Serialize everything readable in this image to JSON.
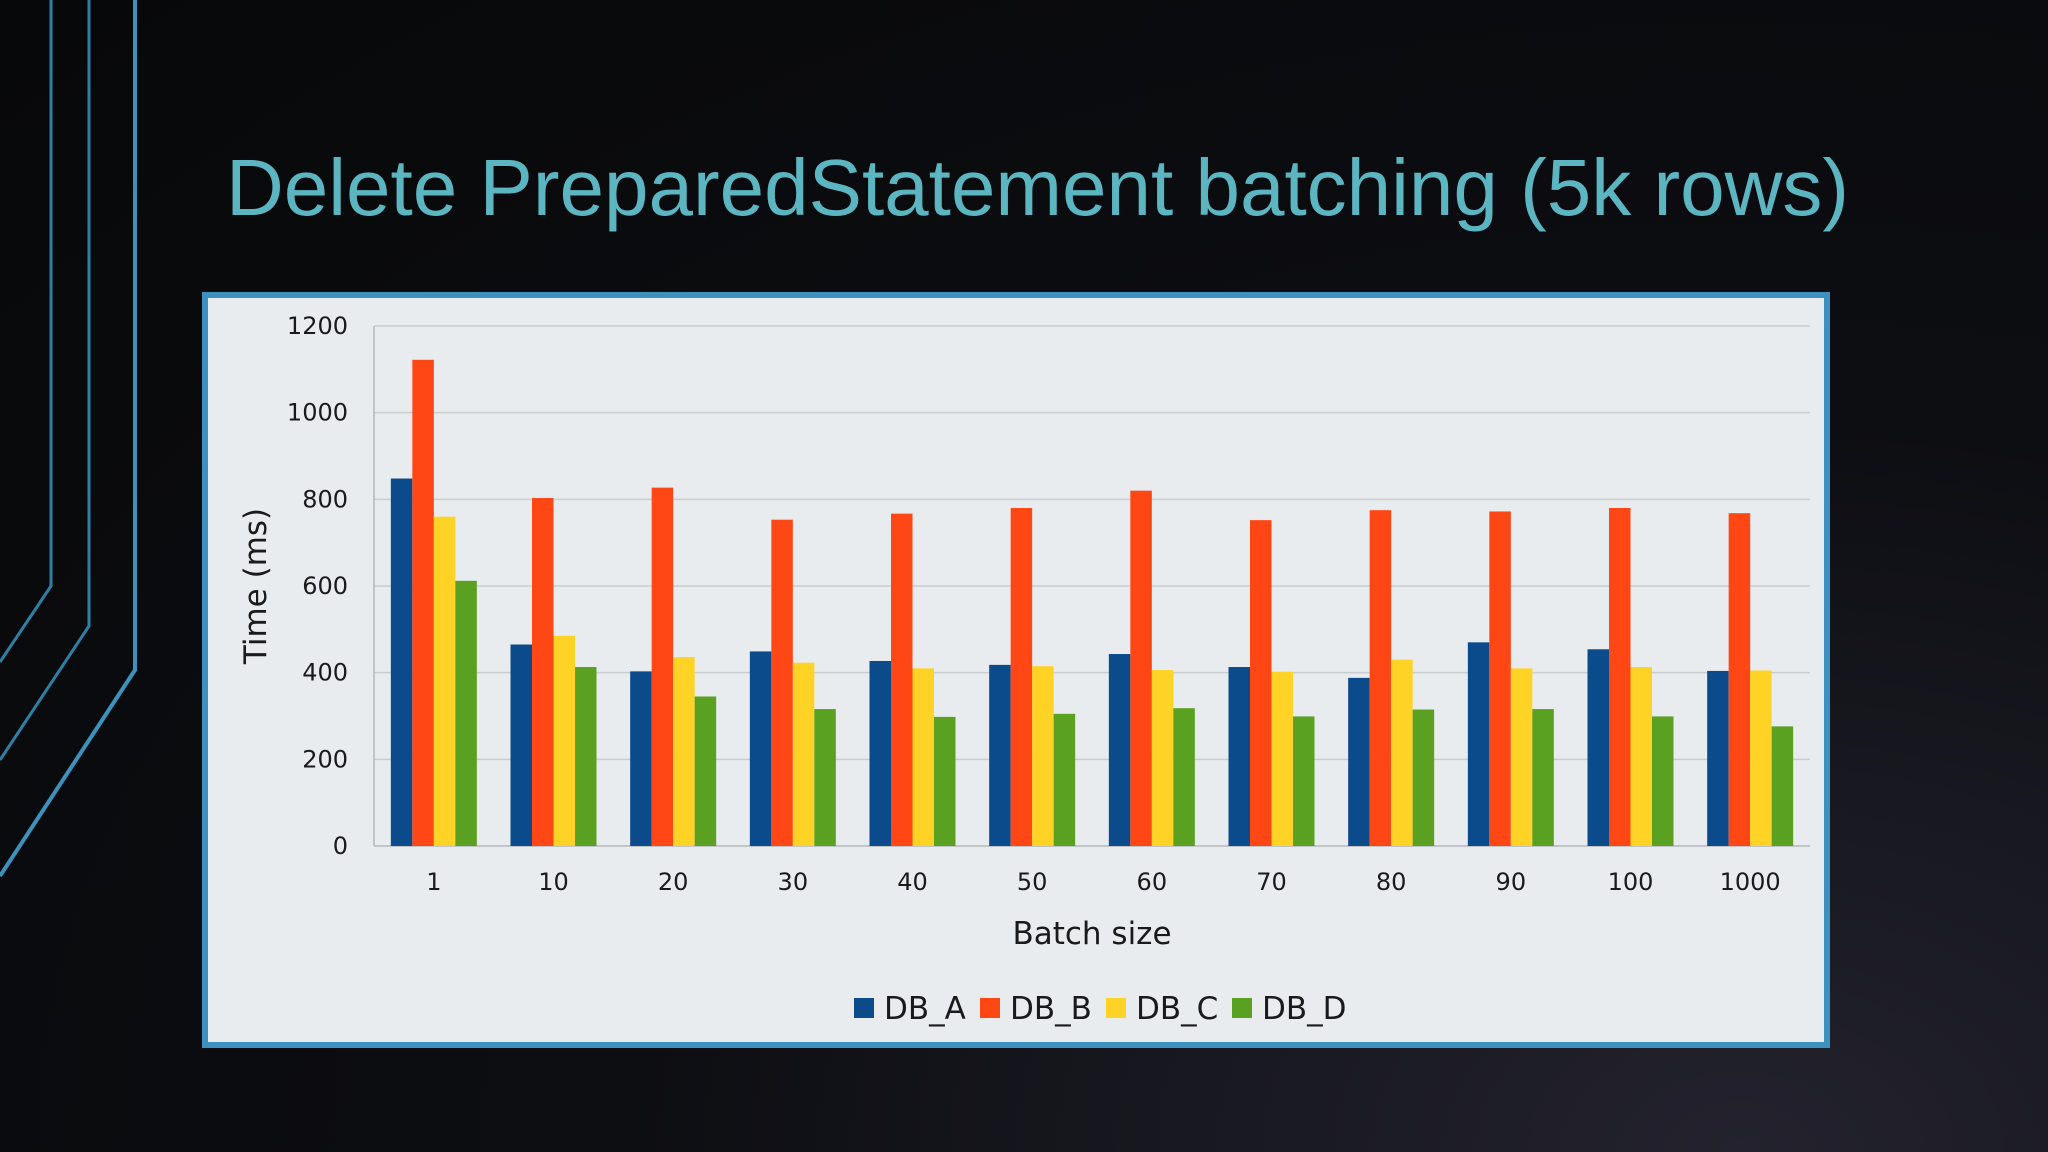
{
  "slide": {
    "title": "Delete PreparedStatement batching (5k rows)",
    "title_color": "#5bb6c2",
    "accent_color": "#3d91c0",
    "decoration": "diagonal-accent-lines"
  },
  "chart_data": {
    "type": "bar",
    "title": "",
    "xlabel": "Batch size",
    "ylabel": "Time (ms)",
    "ylim": [
      0,
      1200
    ],
    "yticks": [
      0,
      200,
      400,
      600,
      800,
      1000,
      1200
    ],
    "grid": true,
    "legend_position": "bottom",
    "categories": [
      "1",
      "10",
      "20",
      "30",
      "40",
      "50",
      "60",
      "70",
      "80",
      "90",
      "100",
      "1000"
    ],
    "series": [
      {
        "name": "DB_A",
        "color": "#0b4b8c",
        "values": [
          848,
          465,
          403,
          449,
          427,
          418,
          443,
          413,
          388,
          470,
          454,
          404
        ]
      },
      {
        "name": "DB_B",
        "color": "#ff4716",
        "values": [
          1122,
          803,
          827,
          753,
          767,
          780,
          820,
          752,
          775,
          772,
          780,
          768
        ]
      },
      {
        "name": "DB_C",
        "color": "#ffd326",
        "values": [
          760,
          485,
          436,
          423,
          410,
          415,
          406,
          402,
          430,
          410,
          413,
          405
        ]
      },
      {
        "name": "DB_D",
        "color": "#5aa021",
        "values": [
          612,
          413,
          345,
          316,
          298,
          305,
          318,
          299,
          315,
          316,
          299,
          276
        ]
      }
    ]
  }
}
